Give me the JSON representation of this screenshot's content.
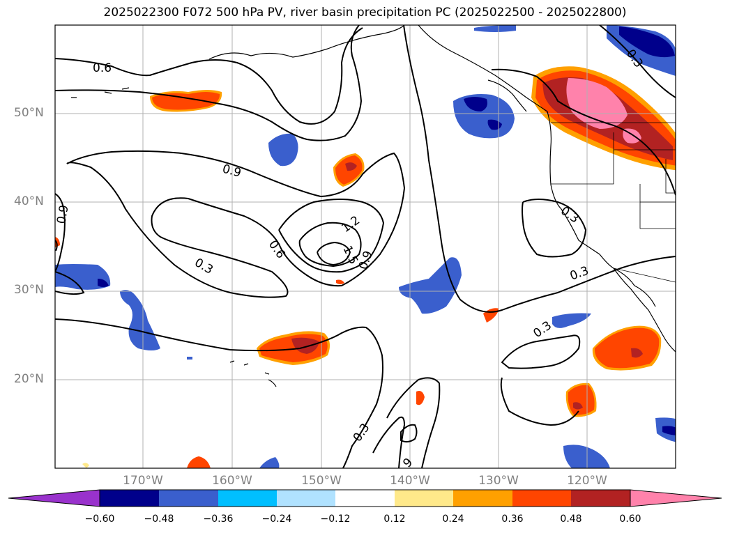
{
  "title": "2025022300 F072 500 hPa PV, river basin precipitation PC (2025022500 - 2025022800)",
  "map": {
    "lat_labels": [
      "50°N",
      "40°N",
      "30°N",
      "20°N"
    ],
    "lon_labels": [
      "170°W",
      "160°W",
      "150°W",
      "140°W",
      "130°W",
      "120°W"
    ],
    "contour_labels": [
      "0.6",
      "0.9",
      "0.9",
      "0.6",
      "1.2",
      "1.5",
      "0.9",
      "0.3",
      "0.3",
      "0.3",
      "0.3",
      "0.3",
      "0.3",
      "9"
    ],
    "colors": {
      "pos_light": "#ffe98a",
      "pos_orange": "#ffa000",
      "pos_red": "#ff4500",
      "pos_dark": "#b22222",
      "pos_pink": "#ff82ab",
      "neg_blue": "#3a5fcd",
      "neg_navy": "#00008b",
      "neg_cyan": "#00bfff"
    }
  },
  "colorbar": {
    "ticks": [
      "−0.60",
      "−0.48",
      "−0.36",
      "−0.24",
      "−0.12",
      "0.12",
      "0.24",
      "0.36",
      "0.48",
      "0.60"
    ],
    "colors": [
      "#9932cc",
      "#00008b",
      "#3a5fcd",
      "#00bfff",
      "#b0e2ff",
      "#ffffff",
      "#ffe98a",
      "#ffa000",
      "#ff4500",
      "#b22222",
      "#ff82ab"
    ]
  }
}
